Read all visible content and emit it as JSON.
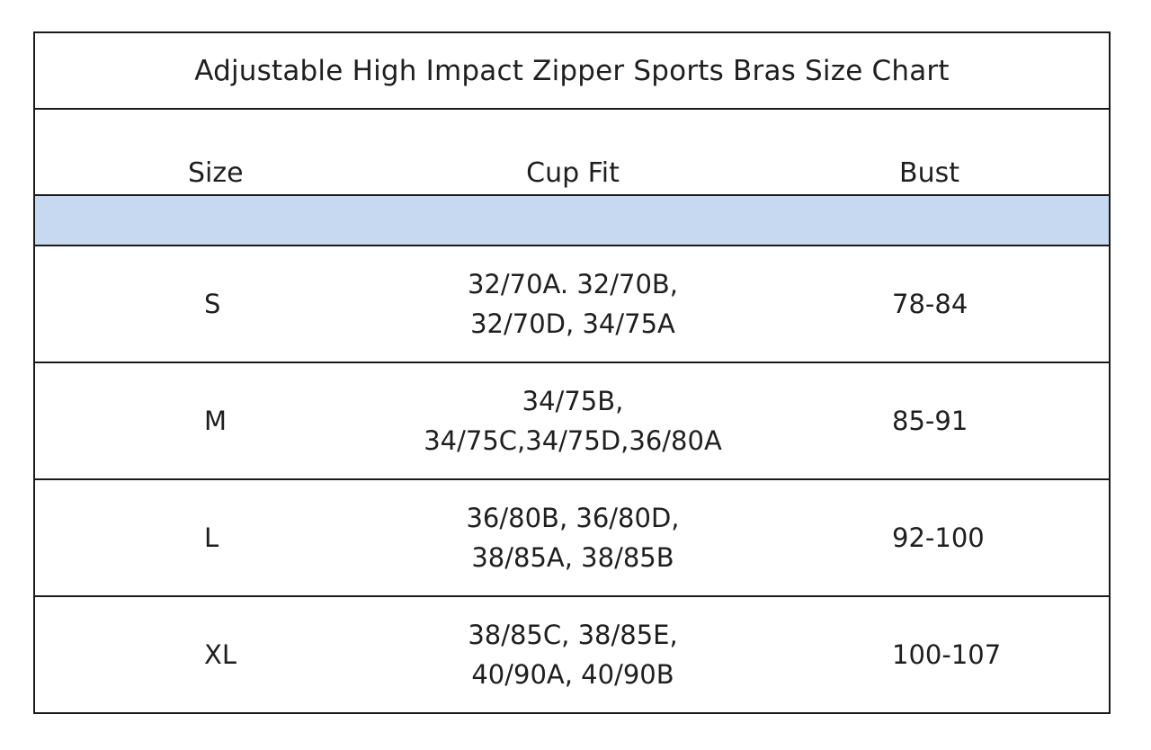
{
  "title": "Adjustable High Impact Zipper Sports Bras Size Chart",
  "columns": {
    "size": "Size",
    "cup_fit": "Cup Fit",
    "bust": "Bust"
  },
  "rows": [
    {
      "size": "S",
      "cup_fit_line1": "32/70A. 32/70B,",
      "cup_fit_line2": "32/70D, 34/75A",
      "bust": "78-84"
    },
    {
      "size": "M",
      "cup_fit_line1": "34/75B,",
      "cup_fit_line2": "34/75C,34/75D,36/80A",
      "bust": "85-91"
    },
    {
      "size": "L",
      "cup_fit_line1": "36/80B, 36/80D,",
      "cup_fit_line2": "38/85A, 38/85B",
      "bust": "92-100"
    },
    {
      "size": "XL",
      "cup_fit_line1": "38/85C, 38/85E,",
      "cup_fit_line2": "40/90A, 40/90B",
      "bust": "100-107"
    }
  ],
  "colors": {
    "band": "#c6d9f1",
    "border": "#1a1a1a",
    "text": "#1f1f1f"
  }
}
